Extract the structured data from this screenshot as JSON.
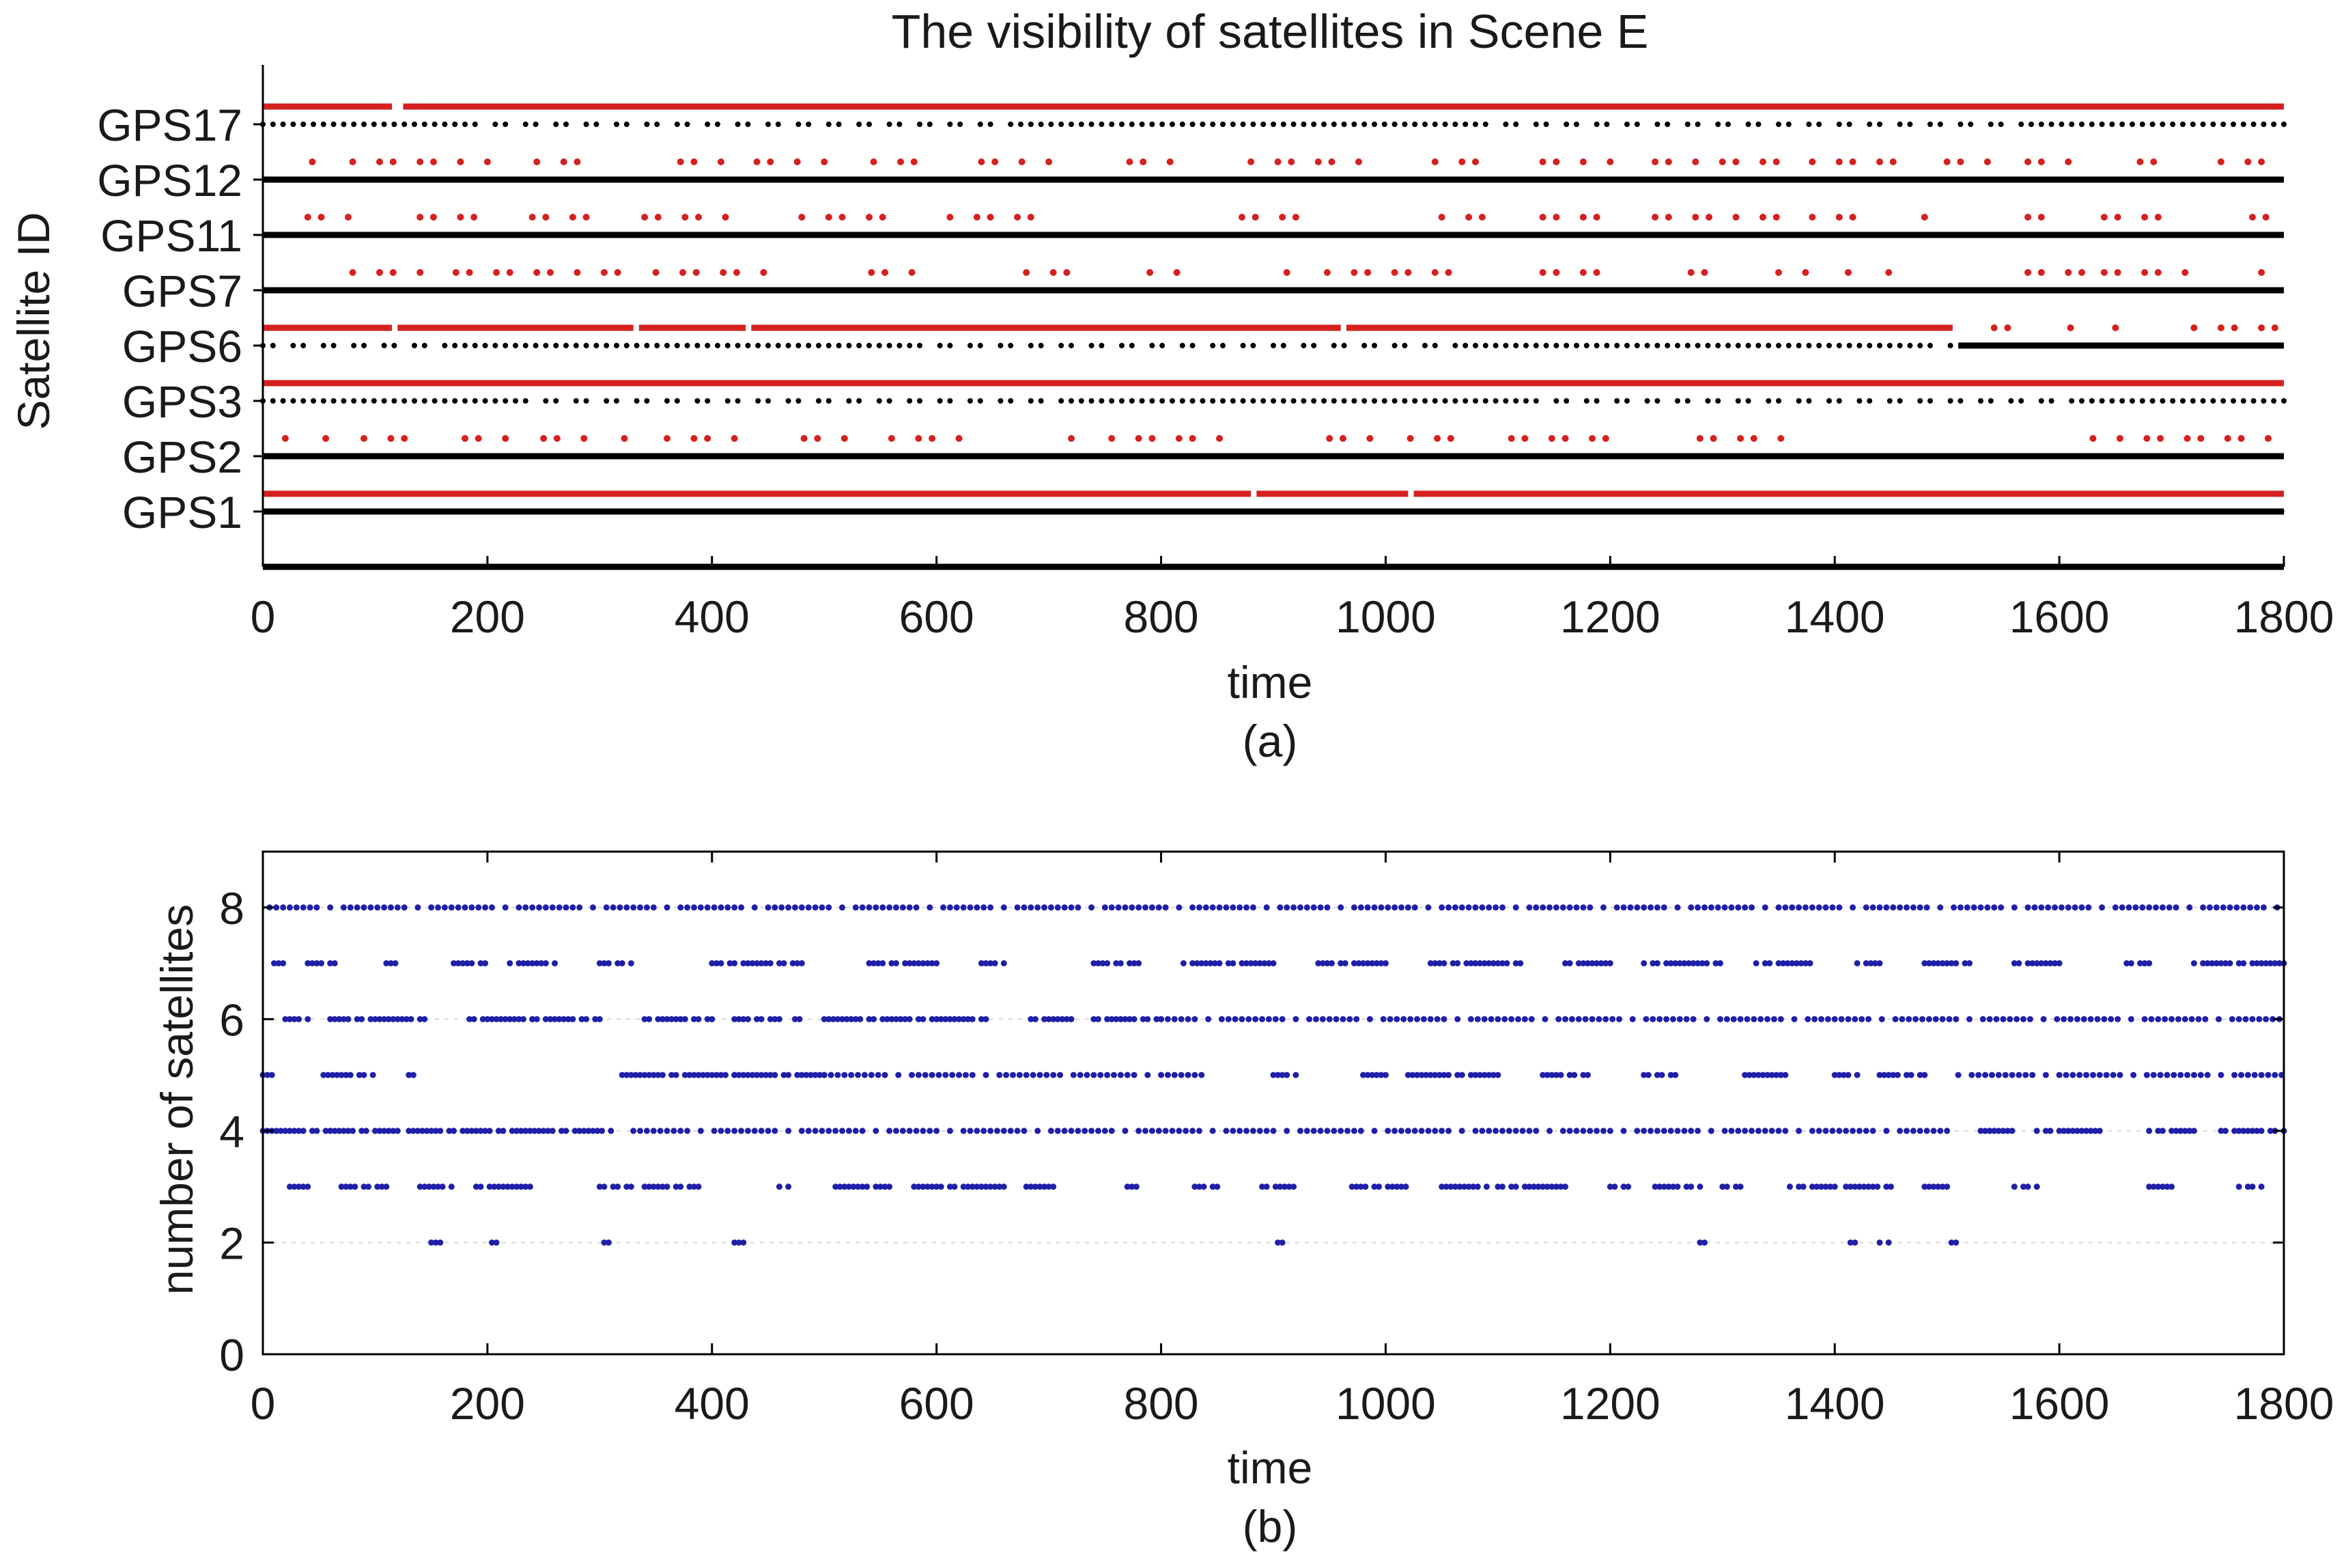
{
  "chart_data": [
    {
      "type": "scatter",
      "title": "The visibility of satellites in Scene E",
      "xlabel": "time",
      "ylabel": "Satellite ID",
      "caption": "(a)",
      "xlim": [
        0,
        1800
      ],
      "xticks": [
        "0",
        "200",
        "400",
        "600",
        "800",
        "1000",
        "1200",
        "1400",
        "1600",
        "1800"
      ],
      "categories": [
        "GPS1",
        "GPS2",
        "GPS3",
        "GPS6",
        "GPS7",
        "GPS11",
        "GPS12",
        "GPS17"
      ],
      "legend": "none",
      "grid": false,
      "colors": {
        "visible": "#000000",
        "flag": "#d62020",
        "axis": "#000000"
      },
      "series": [
        {
          "values": [
            {
              "id": "GPS1",
              "visible": [
                [
                  0,
                  1800
                ]
              ],
              "dots": [
                [
                  0,
                  880
                ],
                [
                  880,
                  1800
                ]
              ],
              "flag": [
                [
                  0,
                  880
                ],
                [
                  885,
                  1020
                ],
                [
                  1025,
                  1800
                ]
              ]
            },
            {
              "id": "GPS2",
              "visible": [
                [
                  0,
                  1800
                ]
              ],
              "dots": [],
              "flag_dots": [
                [
                  20,
                  60
                ],
                [
                  90,
                  140
                ],
                [
                  180,
                  220
                ],
                [
                  250,
                  330
                ],
                [
                  360,
                  440
                ],
                [
                  470,
                  520
                ],
                [
                  560,
                  640
                ],
                [
                  720,
                  860
                ],
                [
                  950,
                  1060
                ],
                [
                  1100,
                  1200
                ],
                [
                  1280,
                  1360
                ],
                [
                  1500,
                  1510
                ],
                [
                  1630,
                  1800
                ]
              ]
            },
            {
              "id": "GPS3",
              "visible": [],
              "dots": [
                [
                  0,
                  1800
                ]
              ],
              "flag": [
                [
                  0,
                  1800
                ]
              ]
            },
            {
              "id": "GPS6",
              "visible": [
                [
                  1510,
                  1800
                ]
              ],
              "dots": [
                [
                  0,
                  1510
                ]
              ],
              "flag": [
                [
                  0,
                  115
                ],
                [
                  120,
                  330
                ],
                [
                  335,
                  430
                ],
                [
                  435,
                  960
                ],
                [
                  965,
                  1505
                ]
              ],
              "flag_dots": [
                [
                  1530,
                  1560
                ],
                [
                  1610,
                  1620
                ],
                [
                  1650,
                  1670
                ],
                [
                  1720,
                  1760
                ],
                [
                  1780,
                  1800
                ]
              ]
            },
            {
              "id": "GPS7",
              "visible": [
                [
                  0,
                  1800
                ]
              ],
              "dots": [],
              "flag_dots": [
                [
                  0,
                  10
                ],
                [
                  80,
                  140
                ],
                [
                  160,
                  320
                ],
                [
                  350,
                  460
                ],
                [
                  530,
                  580
                ],
                [
                  680,
                  720
                ],
                [
                  790,
                  820
                ],
                [
                  900,
                  1060
                ],
                [
                  1140,
                  1200
                ],
                [
                  1260,
                  1300
                ],
                [
                  1350,
                  1380
                ],
                [
                  1400,
                  1460
                ],
                [
                  1560,
                  1620
                ],
                [
                  1640,
                  1740
                ],
                [
                  1780,
                  1800
                ]
              ]
            },
            {
              "id": "GPS11",
              "visible": [
                [
                  0,
                  1800
                ]
              ],
              "dots": [],
              "flag_dots": [
                [
                  40,
                  80
                ],
                [
                  140,
                  200
                ],
                [
                  240,
                  300
                ],
                [
                  340,
                  420
                ],
                [
                  480,
                  560
                ],
                [
                  600,
                  700
                ],
                [
                  860,
                  940
                ],
                [
                  1050,
                  1100
                ],
                [
                  1140,
                  1200
                ],
                [
                  1240,
                  1360
                ],
                [
                  1380,
                  1420
                ],
                [
                  1480,
                  1500
                ],
                [
                  1560,
                  1600
                ],
                [
                  1640,
                  1700
                ],
                [
                  1760,
                  1800
                ]
              ]
            },
            {
              "id": "GPS12",
              "visible": [
                [
                  0,
                  1800
                ]
              ],
              "dots": [],
              "flag_dots": [
                [
                  20,
                  60
                ],
                [
                  80,
                  120
                ],
                [
                  140,
                  200
                ],
                [
                  220,
                  300
                ],
                [
                  360,
                  420
                ],
                [
                  440,
                  500
                ],
                [
                  520,
                  600
                ],
                [
                  640,
                  700
                ],
                [
                  760,
                  820
                ],
                [
                  880,
                  980
                ],
                [
                  1020,
                  1100
                ],
                [
                  1140,
                  1200
                ],
                [
                  1240,
                  1360
                ],
                [
                  1380,
                  1460
                ],
                [
                  1500,
                  1540
                ],
                [
                  1560,
                  1620
                ],
                [
                  1660,
                  1700
                ],
                [
                  1720,
                  1800
                ]
              ]
            },
            {
              "id": "GPS17",
              "visible": [],
              "dots": [
                [
                  0,
                  1800
                ]
              ],
              "flag": [
                [
                  0,
                  115
                ],
                [
                  125,
                  1800
                ]
              ]
            }
          ]
        }
      ]
    },
    {
      "type": "scatter",
      "title": "",
      "xlabel": "time",
      "ylabel": "number of satellites",
      "caption": "(b)",
      "xlim": [
        0,
        1800
      ],
      "ylim": [
        0,
        9
      ],
      "xticks": [
        "0",
        "200",
        "400",
        "600",
        "800",
        "1000",
        "1200",
        "1400",
        "1600",
        "1800"
      ],
      "yticks": [
        "0",
        "2",
        "4",
        "6",
        "8"
      ],
      "grid": true,
      "legend": "none",
      "colors": {
        "points": "#1f1fa8",
        "grid": "#d8d8d8",
        "axis": "#000000"
      },
      "series": [
        {
          "values": [
            {
              "y": 8,
              "ranges": [
                [
                  0,
                  1800
                ]
              ]
            },
            {
              "y": 7,
              "ranges": [
                [
                  10,
                  20
                ],
                [
                  40,
                  70
                ],
                [
                  110,
                  120
                ],
                [
                  170,
                  200
                ],
                [
                  220,
                  260
                ],
                [
                  300,
                  330
                ],
                [
                  400,
                  480
                ],
                [
                  540,
                  600
                ],
                [
                  640,
                  660
                ],
                [
                  740,
                  780
                ],
                [
                  820,
                  900
                ],
                [
                  940,
                  1000
                ],
                [
                  1040,
                  1120
                ],
                [
                  1160,
                  1200
                ],
                [
                  1230,
                  1300
                ],
                [
                  1330,
                  1380
                ],
                [
                  1420,
                  1440
                ],
                [
                  1480,
                  1520
                ],
                [
                  1560,
                  1600
                ],
                [
                  1660,
                  1680
                ],
                [
                  1720,
                  1800
                ]
              ]
            },
            {
              "y": 6,
              "ranges": [
                [
                  20,
                  40
                ],
                [
                  60,
                  150
                ],
                [
                  180,
                  240
                ],
                [
                  240,
                  300
                ],
                [
                  340,
                  400
                ],
                [
                  420,
                  460
                ],
                [
                  470,
                  480
                ],
                [
                  500,
                  650
                ],
                [
                  680,
                  720
                ],
                [
                  740,
                  800
                ],
                [
                  800,
                  1800
                ]
              ]
            },
            {
              "y": 5,
              "ranges": [
                [
                  0,
                  10
                ],
                [
                  50,
                  100
                ],
                [
                  130,
                  140
                ],
                [
                  320,
                  420
                ],
                [
                  420,
                  500
                ],
                [
                  500,
                  840
                ],
                [
                  900,
                  920
                ],
                [
                  980,
                  1000
                ],
                [
                  1020,
                  1100
                ],
                [
                  1140,
                  1180
                ],
                [
                  1230,
                  1260
                ],
                [
                  1320,
                  1360
                ],
                [
                  1400,
                  1420
                ],
                [
                  1440,
                  1480
                ],
                [
                  1510,
                  1800
                ]
              ]
            },
            {
              "y": 4,
              "ranges": [
                [
                  0,
                  120
                ],
                [
                  130,
                  310
                ],
                [
                  330,
                  1510
                ],
                [
                  1530,
                  1560
                ],
                [
                  1580,
                  1640
                ],
                [
                  1680,
                  1720
                ],
                [
                  1740,
                  1800
                ]
              ]
            },
            {
              "y": 3,
              "ranges": [
                [
                  20,
                  40
                ],
                [
                  70,
                  110
                ],
                [
                  140,
                  170
                ],
                [
                  190,
                  240
                ],
                [
                  300,
                  330
                ],
                [
                  340,
                  390
                ],
                [
                  460,
                  470
                ],
                [
                  510,
                  560
                ],
                [
                  580,
                  660
                ],
                [
                  680,
                  710
                ],
                [
                  770,
                  780
                ],
                [
                  830,
                  850
                ],
                [
                  890,
                  920
                ],
                [
                  970,
                  1020
                ],
                [
                  1050,
                  1090
                ],
                [
                  1100,
                  1160
                ],
                [
                  1200,
                  1220
                ],
                [
                  1240,
                  1280
                ],
                [
                  1300,
                  1320
                ],
                [
                  1360,
                  1400
                ],
                [
                  1410,
                  1450
                ],
                [
                  1480,
                  1500
                ],
                [
                  1560,
                  1580
                ],
                [
                  1680,
                  1700
                ],
                [
                  1760,
                  1780
                ]
              ]
            },
            {
              "y": 2,
              "ranges": [
                [
                  150,
                  160
                ],
                [
                  200,
                  210
                ],
                [
                  300,
                  310
                ],
                [
                  420,
                  430
                ],
                [
                  900,
                  910
                ],
                [
                  1280,
                  1290
                ],
                [
                  1410,
                  1420
                ],
                [
                  1440,
                  1450
                ],
                [
                  1500,
                  1510
                ]
              ]
            }
          ]
        }
      ]
    }
  ]
}
